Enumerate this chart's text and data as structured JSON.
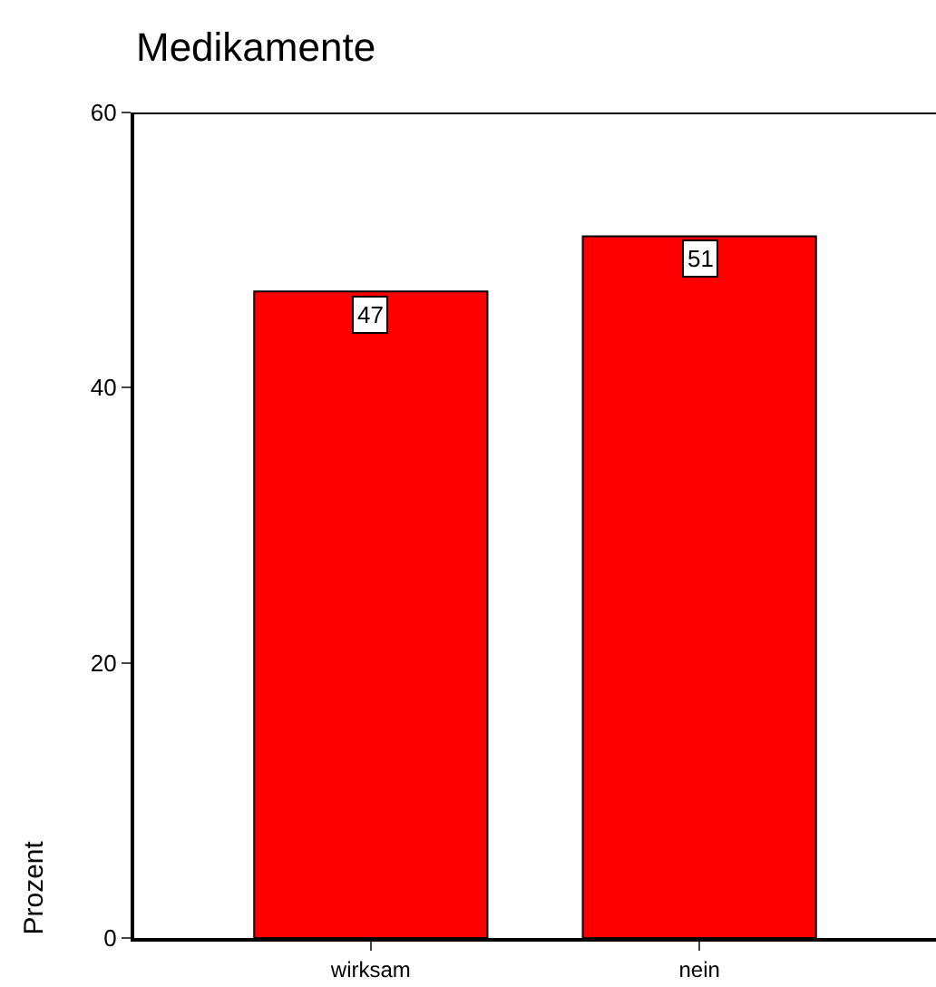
{
  "chart_data": {
    "type": "bar",
    "title": "Medikamente",
    "ylabel": "Prozent",
    "categories": [
      "wirksam",
      "nein"
    ],
    "values": [
      47,
      51
    ],
    "color": "#ff0000",
    "ylim": [
      0,
      60
    ],
    "yticks": [
      0,
      20,
      40,
      60
    ],
    "data_labels": true
  }
}
